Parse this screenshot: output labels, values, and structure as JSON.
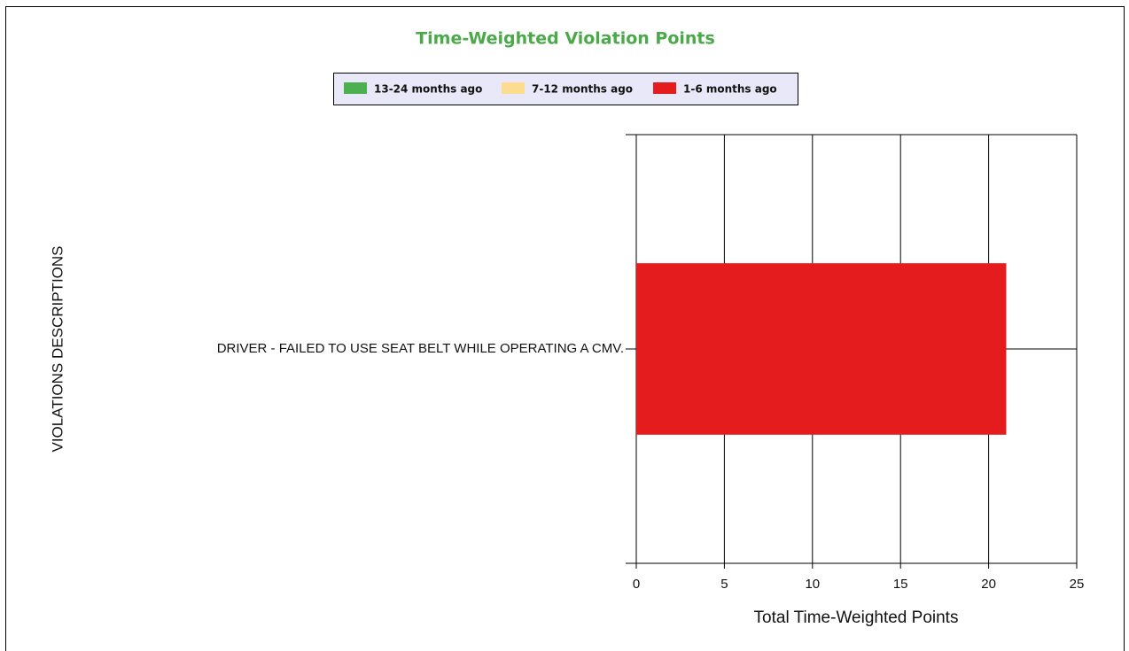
{
  "chart_data": {
    "type": "bar",
    "orientation": "horizontal",
    "stacked": true,
    "title": "Time-Weighted Violation Points",
    "categories": [
      "DRIVER - FAILED TO USE SEAT BELT WHILE OPERATING A CMV."
    ],
    "series": [
      {
        "name": "13-24 months ago",
        "color": "#4caf50",
        "values": [
          0
        ]
      },
      {
        "name": "7-12 months ago",
        "color": "#fddc8f",
        "values": [
          0
        ]
      },
      {
        "name": "1-6 months ago",
        "color": "#e41c1e",
        "values": [
          21
        ]
      }
    ],
    "xlim": [
      0,
      25
    ],
    "xticks": [
      0,
      5,
      10,
      15,
      20,
      25
    ],
    "x_label": "Total Time-Weighted Points",
    "y_label": "VIOLATIONS DESCRIPTIONS",
    "grid": true,
    "legend": "top"
  }
}
